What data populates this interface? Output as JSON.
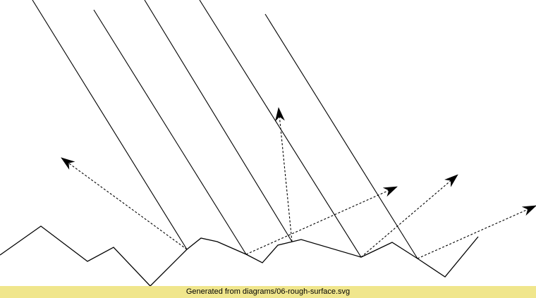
{
  "footer": {
    "caption": "Generated from diagrams/06-rough-surface.svg",
    "background": "#f0e68c"
  },
  "diagram": {
    "stroke_color": "#000000",
    "elements": {
      "rough_surface": "jagged polyline",
      "incident_rays": 5,
      "scattered_rays": 5
    }
  }
}
